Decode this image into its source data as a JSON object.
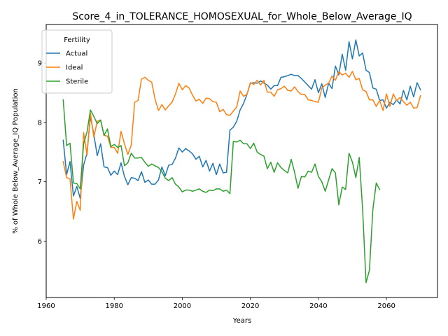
{
  "chart_data": {
    "type": "line",
    "title": "Score_4_in_TOLERANCE_HOMOSEXUAL_for_Whole_Below_Average_IQ",
    "xlabel": "Years",
    "ylabel": "% of Whole Below_Average_IQ Population",
    "xlim": [
      1960,
      2075
    ],
    "ylim": [
      5.05,
      9.65
    ],
    "xticks": [
      1960,
      1980,
      2000,
      2020,
      2040,
      2060
    ],
    "yticks": [
      6,
      7,
      8,
      9
    ],
    "grid": false,
    "legend": {
      "title": "Fertility",
      "placement": "top-left"
    },
    "series": [
      {
        "name": "Actual",
        "color": "#1f77b4",
        "x": [
          1965,
          1966,
          1967,
          1968,
          1969,
          1970,
          1971,
          1972,
          1973,
          1974,
          1975,
          1976,
          1977,
          1978,
          1979,
          1980,
          1981,
          1982,
          1983,
          1984,
          1985,
          1986,
          1987,
          1988,
          1989,
          1990,
          1991,
          1992,
          1993,
          1994,
          1995,
          1996,
          1997,
          1998,
          1999,
          2000,
          2001,
          2002,
          2003,
          2004,
          2005,
          2006,
          2007,
          2008,
          2009,
          2010,
          2011,
          2012,
          2013,
          2014,
          2015,
          2016,
          2017,
          2018,
          2019,
          2020,
          2021,
          2022,
          2023,
          2024,
          2025,
          2026,
          2027,
          2028,
          2029,
          2030,
          2031,
          2032,
          2033,
          2034,
          2035,
          2036,
          2037,
          2038,
          2039,
          2040,
          2041,
          2042,
          2043,
          2044,
          2045,
          2046,
          2047,
          2048,
          2049,
          2050,
          2051,
          2052,
          2053,
          2054,
          2055,
          2056,
          2057,
          2058,
          2059,
          2060,
          2061,
          2062,
          2063,
          2064,
          2065,
          2066,
          2067,
          2068,
          2069,
          2070
        ],
        "values": [
          7.7,
          7.12,
          7.34,
          6.76,
          6.92,
          6.72,
          7.28,
          7.48,
          8.1,
          7.8,
          7.44,
          7.64,
          7.25,
          7.24,
          7.11,
          7.18,
          7.12,
          7.32,
          7.09,
          6.95,
          7.07,
          7.06,
          7.02,
          7.17,
          6.99,
          7.03,
          6.96,
          6.96,
          7.03,
          7.25,
          7.1,
          7.28,
          7.29,
          7.4,
          7.57,
          7.5,
          7.56,
          7.52,
          7.47,
          7.38,
          7.43,
          7.25,
          7.36,
          7.18,
          7.31,
          7.12,
          7.3,
          7.15,
          7.16,
          7.87,
          7.92,
          8.02,
          8.21,
          8.32,
          8.47,
          8.66,
          8.67,
          8.66,
          8.7,
          8.66,
          8.63,
          8.56,
          8.62,
          8.62,
          8.76,
          8.77,
          8.79,
          8.81,
          8.79,
          8.79,
          8.74,
          8.68,
          8.62,
          8.56,
          8.72,
          8.5,
          8.65,
          8.42,
          8.66,
          8.57,
          8.95,
          8.8,
          9.15,
          8.88,
          9.36,
          9.07,
          9.39,
          9.12,
          9.17,
          8.88,
          8.84,
          8.58,
          8.56,
          8.37,
          8.38,
          8.24,
          8.34,
          8.3,
          8.38,
          8.31,
          8.54,
          8.38,
          8.61,
          8.43,
          8.67,
          8.55
        ]
      },
      {
        "name": "Ideal",
        "color": "#ff7f0e",
        "x": [
          1965,
          1966,
          1967,
          1968,
          1969,
          1970,
          1971,
          1972,
          1973,
          1974,
          1975,
          1976,
          1977,
          1978,
          1979,
          1980,
          1981,
          1982,
          1983,
          1984,
          1985,
          1986,
          1987,
          1988,
          1989,
          1990,
          1991,
          1992,
          1993,
          1994,
          1995,
          1996,
          1997,
          1998,
          1999,
          2000,
          2001,
          2002,
          2003,
          2004,
          2005,
          2006,
          2007,
          2008,
          2009,
          2010,
          2011,
          2012,
          2013,
          2014,
          2015,
          2016,
          2017,
          2018,
          2019,
          2020,
          2021,
          2022,
          2023,
          2024,
          2025,
          2026,
          2027,
          2028,
          2029,
          2030,
          2031,
          2032,
          2033,
          2034,
          2035,
          2036,
          2037,
          2038,
          2039,
          2040,
          2041,
          2042,
          2043,
          2044,
          2045,
          2046,
          2047,
          2048,
          2049,
          2050,
          2051,
          2052,
          2053,
          2054,
          2055,
          2056,
          2057,
          2058,
          2059,
          2060,
          2061,
          2062,
          2063,
          2064,
          2065,
          2066,
          2067,
          2068,
          2069,
          2070
        ],
        "values": [
          7.34,
          7.07,
          7.05,
          6.37,
          6.67,
          6.52,
          7.83,
          7.45,
          8.16,
          7.75,
          8.02,
          8.04,
          7.78,
          7.77,
          7.58,
          7.58,
          7.48,
          7.85,
          7.64,
          7.46,
          7.62,
          8.34,
          8.37,
          8.73,
          8.76,
          8.71,
          8.68,
          8.39,
          8.2,
          8.3,
          8.21,
          8.28,
          8.34,
          8.48,
          8.66,
          8.55,
          8.62,
          8.58,
          8.46,
          8.36,
          8.39,
          8.32,
          8.41,
          8.4,
          8.35,
          8.34,
          8.18,
          8.22,
          8.13,
          8.12,
          8.19,
          8.26,
          8.53,
          8.44,
          8.47,
          8.67,
          8.64,
          8.71,
          8.63,
          8.71,
          8.51,
          8.51,
          8.44,
          8.55,
          8.57,
          8.61,
          8.54,
          8.53,
          8.6,
          8.52,
          8.47,
          8.47,
          8.38,
          8.37,
          8.35,
          8.34,
          8.58,
          8.63,
          8.66,
          8.78,
          8.71,
          8.86,
          8.8,
          8.83,
          8.76,
          8.86,
          8.72,
          8.74,
          8.55,
          8.52,
          8.38,
          8.38,
          8.27,
          8.37,
          8.2,
          8.48,
          8.27,
          8.48,
          8.37,
          8.42,
          8.35,
          8.29,
          8.34,
          8.24,
          8.25,
          8.45
        ]
      },
      {
        "name": "Sterile",
        "color": "#2ca02c",
        "x": [
          1965,
          1966,
          1967,
          1968,
          1969,
          1970,
          1971,
          1972,
          1973,
          1974,
          1975,
          1976,
          1977,
          1978,
          1979,
          1980,
          1981,
          1982,
          1983,
          1984,
          1985,
          1986,
          1987,
          1988,
          1989,
          1990,
          1991,
          1992,
          1993,
          1994,
          1995,
          1996,
          1997,
          1998,
          1999,
          2000,
          2001,
          2002,
          2003,
          2004,
          2005,
          2006,
          2007,
          2008,
          2009,
          2010,
          2011,
          2012,
          2013,
          2014,
          2015,
          2016,
          2017,
          2018,
          2019,
          2020,
          2021,
          2022,
          2023,
          2024,
          2025,
          2026,
          2027,
          2028,
          2029,
          2030,
          2031,
          2032,
          2033,
          2034,
          2035,
          2036,
          2037,
          2038,
          2039,
          2040,
          2041,
          2042,
          2043,
          2044,
          2045,
          2046,
          2047,
          2048,
          2049,
          2050,
          2051,
          2052,
          2053,
          2054,
          2055,
          2056,
          2057,
          2058
        ],
        "values": [
          8.38,
          7.61,
          7.65,
          6.98,
          6.97,
          6.88,
          7.64,
          7.84,
          8.21,
          8.1,
          7.98,
          8.04,
          7.78,
          7.89,
          7.59,
          7.63,
          7.58,
          7.61,
          7.27,
          7.32,
          7.48,
          7.4,
          7.4,
          7.41,
          7.33,
          7.26,
          7.3,
          7.27,
          7.24,
          7.17,
          7.06,
          7.02,
          7.07,
          6.96,
          6.91,
          6.83,
          6.86,
          6.86,
          6.84,
          6.86,
          6.88,
          6.84,
          6.82,
          6.86,
          6.85,
          6.88,
          6.88,
          6.84,
          6.86,
          6.8,
          7.68,
          7.67,
          7.7,
          7.64,
          7.64,
          7.56,
          7.65,
          7.5,
          7.46,
          7.43,
          7.22,
          7.33,
          7.16,
          7.32,
          7.24,
          7.19,
          7.15,
          7.38,
          7.16,
          6.89,
          7.09,
          7.08,
          7.18,
          7.16,
          7.3,
          7.09,
          7.0,
          6.84,
          7.03,
          7.22,
          7.15,
          6.61,
          6.91,
          6.87,
          7.48,
          7.33,
          7.07,
          7.41,
          6.53,
          5.3,
          5.51,
          6.53,
          6.98,
          6.87
        ]
      }
    ]
  }
}
